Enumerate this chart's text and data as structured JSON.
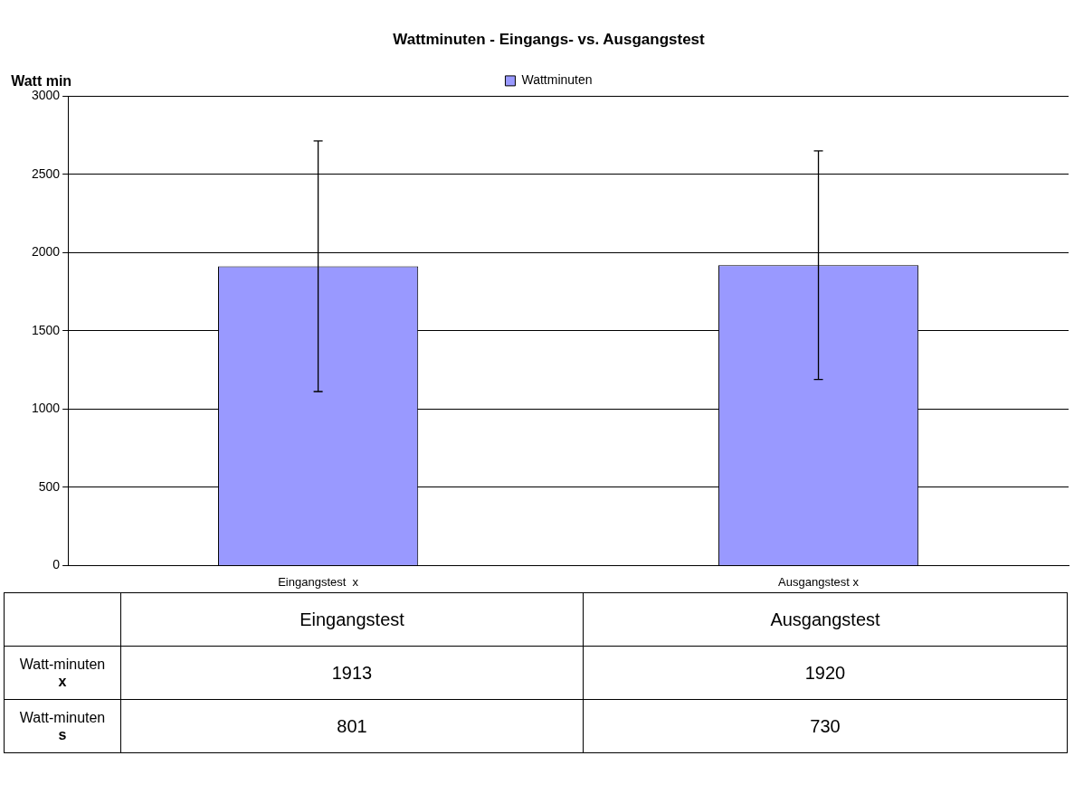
{
  "chart_data": {
    "type": "bar",
    "title": "Wattminuten - Eingangs- vs. Ausgangstest",
    "ylabel": "Watt min",
    "categories": [
      "Eingangstest  x",
      "Ausgangstest x"
    ],
    "series": [
      {
        "name": "Wattminuten",
        "color": "#9999ff",
        "values": [
          1913,
          1920
        ],
        "errors": [
          801,
          730
        ]
      }
    ],
    "ylim": [
      0,
      3000
    ],
    "yticks": [
      0,
      500,
      1000,
      1500,
      2000,
      2500,
      3000
    ],
    "grid": "y",
    "legend": "top",
    "data_labels": true,
    "annotations": [
      "Eingangstest",
      "Ausgangstest",
      "Watt-minuten x",
      "Watt-minuten s",
      "801",
      "730"
    ]
  }
}
